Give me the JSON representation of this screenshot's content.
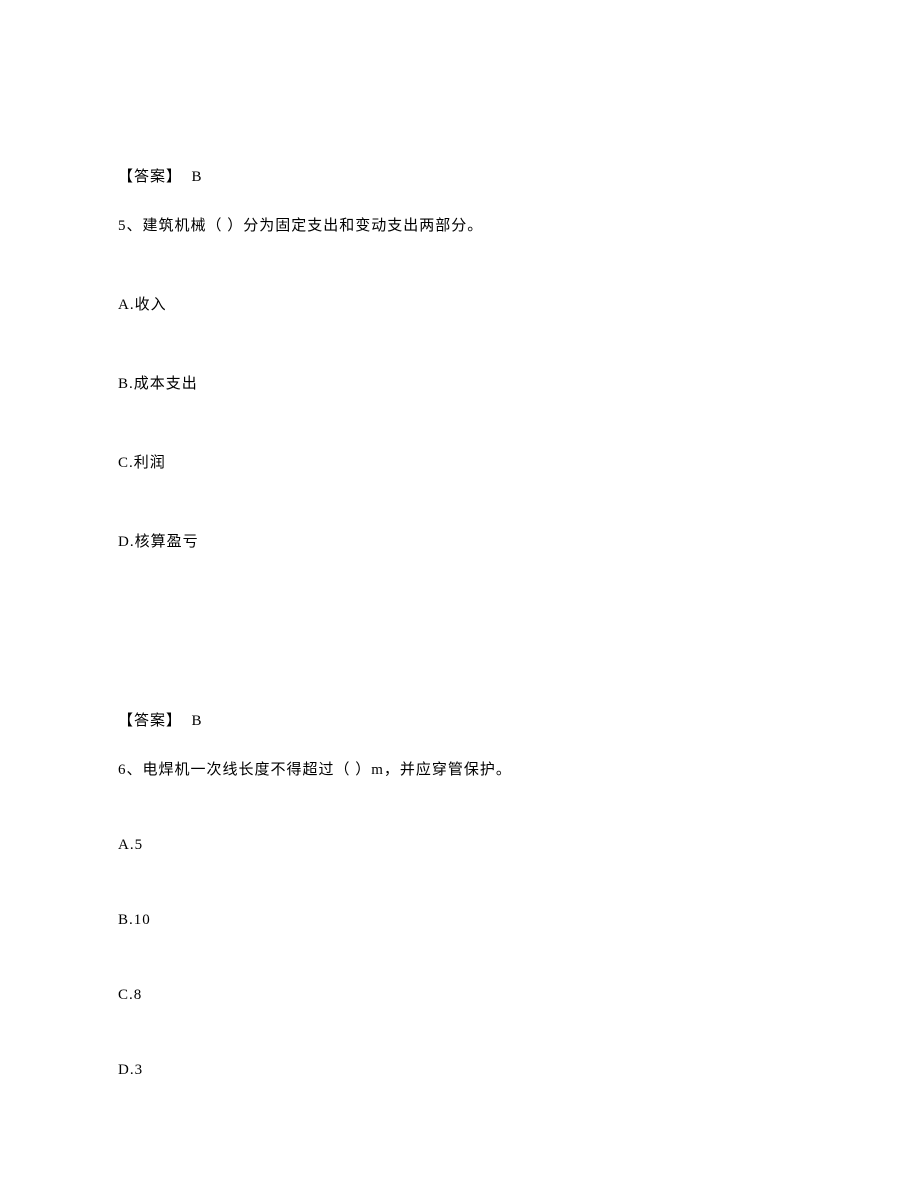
{
  "q4": {
    "answer_label": "【答案】",
    "answer_value": "B"
  },
  "q5": {
    "number": "5、",
    "text": "建筑机械（ ）分为固定支出和变动支出两部分。",
    "options": {
      "a": "A.收入",
      "b": "B.成本支出",
      "c": "C.利润",
      "d": "D.核算盈亏"
    },
    "answer_label": "【答案】",
    "answer_value": "B"
  },
  "q6": {
    "number": "6、",
    "text": "电焊机一次线长度不得超过（ ）m，并应穿管保护。",
    "options": {
      "a": "A.5",
      "b": "B.10",
      "c": "C.8",
      "d": "D.3"
    }
  }
}
